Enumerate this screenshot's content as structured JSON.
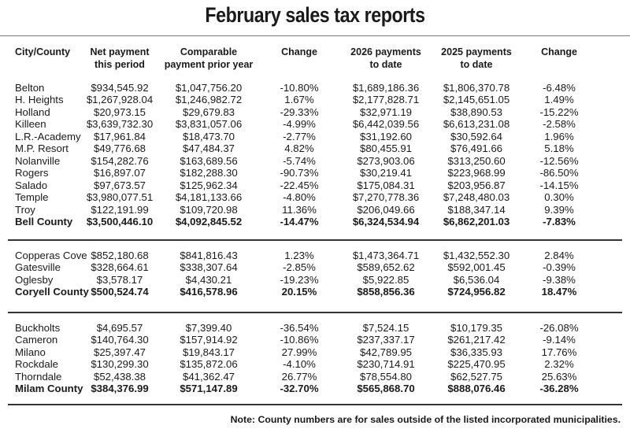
{
  "title": "February sales tax reports",
  "headers": [
    "City/County",
    "Net payment\nthis period",
    "Comparable\npayment prior year",
    "Change",
    "2026 payments\nto date",
    "2025 payments\nto date",
    "Change"
  ],
  "groups": [
    {
      "rows": [
        [
          "Belton",
          "$934,545.92",
          "$1,047,756.20",
          "-10.80%",
          "$1,689,186.36",
          "$1,806,370.78",
          "-6.48%"
        ],
        [
          "H. Heights",
          "$1,267,928.04",
          "$1,246,982.72",
          "1.67%",
          "$2,177,828.71",
          "$2,145,651.05",
          "1.49%"
        ],
        [
          "Holland",
          "$20,973.15",
          "$29,679.83",
          "-29.33%",
          "$32,971.19",
          "$38,890.53",
          "-15.22%"
        ],
        [
          "Killeen",
          "$3,639,732.30",
          "$3,831,057.06",
          "-4.99%",
          "$6,442,039.56",
          "$6,613,231.08",
          "-2.58%"
        ],
        [
          "L.R.-Academy",
          "$17,961.84",
          "$18,473.70",
          "-2.77%",
          "$31,192.60",
          "$30,592.64",
          "1.96%"
        ],
        [
          "M.P. Resort",
          "$49,776.68",
          "$47,484.37",
          "4.82%",
          "$80,455.91",
          "$76,491.66",
          "5.18%"
        ],
        [
          "Nolanville",
          "$154,282.76",
          "$163,689.56",
          "-5.74%",
          "$273,903.06",
          "$313,250.60",
          "-12.56%"
        ],
        [
          "Rogers",
          "$16,897.07",
          "$182,288.30",
          "-90.73%",
          "$30,219.41",
          "$223,968.99",
          "-86.50%"
        ],
        [
          "Salado",
          "$97,673.57",
          "$125,962.34",
          "-22.45%",
          "$175,084.31",
          "$203,956.87",
          "-14.15%"
        ],
        [
          "Temple",
          "$3,980,077.51",
          "$4,181,133.66",
          "-4.80%",
          "$7,270,778.36",
          "$7,248,480.03",
          "0.30%"
        ],
        [
          "Troy",
          "$122,191.99",
          "$109,720.98",
          "11.36%",
          "$206,049.66",
          "$188,347.14",
          "9.39%"
        ]
      ],
      "total": [
        "Bell County",
        "$3,500,446.10",
        "$4,092,845.52",
        "-14.47%",
        "$6,324,534.94",
        "$6,862,201.03",
        "-7.83%"
      ]
    },
    {
      "rows": [
        [
          "Copperas Cove",
          "$852,180.68",
          "$841,816.43",
          "1.23%",
          "$1,473,364.71",
          "$1,432,552.30",
          "2.84%"
        ],
        [
          "Gatesville",
          "$328,664.61",
          "$338,307.64",
          "-2.85%",
          "$589,652.62",
          "$592,001.45",
          "-0.39%"
        ],
        [
          "Oglesby",
          "$3,578.17",
          "$4,430.21",
          "-19.23%",
          "$5,922.85",
          "$6,536.04",
          "-9.38%"
        ]
      ],
      "total": [
        "Coryell County",
        "$500,524.74",
        "$416,578.96",
        "20.15%",
        "$858,856.36",
        "$724,956.82",
        "18.47%"
      ]
    },
    {
      "rows": [
        [
          "Buckholts",
          "$4,695.57",
          "$7,399.40",
          "-36.54%",
          "$7,524.15",
          "$10,179.35",
          "-26.08%"
        ],
        [
          "Cameron",
          "$140,764.30",
          "$157,914.92",
          "-10.86%",
          "$237,337.17",
          "$261,217.42",
          "-9.14%"
        ],
        [
          "Milano",
          "$25,397.47",
          "$19,843.17",
          "27.99%",
          "$42,789.95",
          "$36,335.93",
          "17.76%"
        ],
        [
          "Rockdale",
          "$130,299.30",
          "$135,872.06",
          "-4.10%",
          "$230,714.91",
          "$225,470.95",
          "2.32%"
        ],
        [
          "Thorndale",
          "$52,438.38",
          "$41,362.47",
          "26.77%",
          "$78,554.80",
          "$62,527.75",
          "25.63%"
        ]
      ],
      "total": [
        "Milam County",
        "$384,376.99",
        "$571,147.89",
        "-32.70%",
        "$565,868.70",
        "$888,076.46",
        "-36.28%"
      ]
    }
  ],
  "note": "Note: County numbers are for sales outside of the listed incorporated municipalities."
}
